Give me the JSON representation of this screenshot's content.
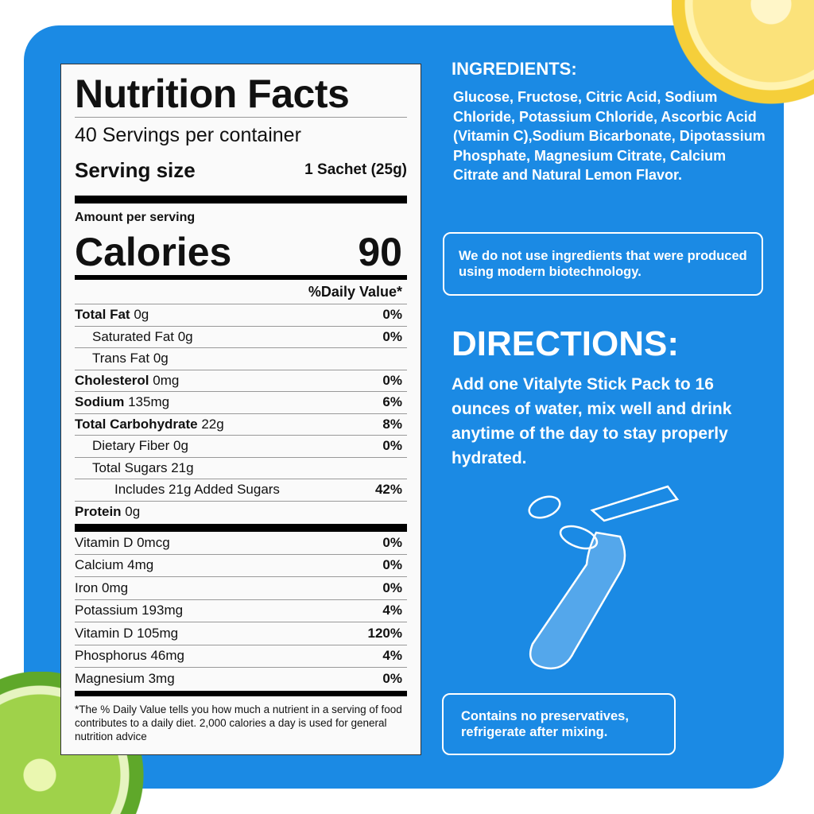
{
  "label": {
    "title": "Nutrition Facts",
    "servings": "40 Servings per container",
    "serving_size_label": "Serving size",
    "serving_size_value": "1 Sachet (25g)",
    "amount_per_serving": "Amount per serving",
    "calories_label": "Calories",
    "calories_value": "90",
    "daily_value_header": "%Daily Value*",
    "rows": [
      {
        "name": "Total Fat",
        "amount": "0g",
        "pct": "0%"
      },
      {
        "name": "Saturated Fat 0g",
        "amount": "",
        "pct": "0%"
      },
      {
        "name": "Trans Fat 0g",
        "amount": "",
        "pct": ""
      },
      {
        "name": "Cholesterol",
        "amount": "0mg",
        "pct": "0%"
      },
      {
        "name": "Sodium",
        "amount": "135mg",
        "pct": "6%"
      },
      {
        "name": "Total Carbohydrate",
        "amount": "22g",
        "pct": "8%"
      },
      {
        "name": "Dietary Fiber 0g",
        "amount": "",
        "pct": "0%"
      },
      {
        "name": "Total Sugars 21g",
        "amount": "",
        "pct": ""
      },
      {
        "name": "Includes 21g Added Sugars",
        "amount": "",
        "pct": "42%"
      },
      {
        "name": "Protein",
        "amount": "0g",
        "pct": ""
      }
    ],
    "micros": [
      {
        "name": "Vitamin D 0mcg",
        "pct": "0%"
      },
      {
        "name": "Calcium 4mg",
        "pct": "0%"
      },
      {
        "name": "Iron 0mg",
        "pct": "0%"
      },
      {
        "name": "Potassium 193mg",
        "pct": "4%"
      },
      {
        "name": "Vitamin D 105mg",
        "pct": "120%"
      },
      {
        "name": "Phosphorus 46mg",
        "pct": "4%"
      },
      {
        "name": "Magnesium 3mg",
        "pct": "0%"
      }
    ],
    "footnote": "*The % Daily Value tells you how much a nutrient in a serving of food contributes to a daily diet. 2,000 calories a day is used for general nutrition advice"
  },
  "ingredients": {
    "heading": "INGREDIENTS:",
    "text": "Glucose, Fructose, Citric Acid, Sodium Chloride, Potassium Chloride, Ascorbic Acid (Vitamin C),Sodium Bicarbonate, Dipotassium Phosphate, Magnesium Citrate, Calcium Citrate and Natural Lemon Flavor."
  },
  "biotech_note": "We do not use ingredients that were produced using modern biotechnology.",
  "directions": {
    "heading": "DIRECTIONS:",
    "text": "Add one Vitalyte Stick Pack to 16 ounces of water, mix well and drink anytime of the day to stay properly hydrated."
  },
  "storage_note": "Contains no preservatives, refrigerate after mixing.",
  "colors": {
    "panel": "#1b8ae4",
    "label_bg": "#fafafa"
  }
}
